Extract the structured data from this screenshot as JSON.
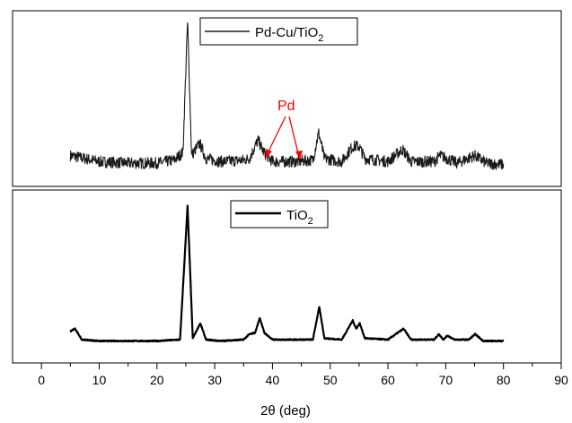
{
  "chart_data": [
    {
      "type": "line",
      "panel": "top",
      "title": "",
      "xlabel": "2θ (deg)",
      "ylabel": "",
      "xlim": [
        -5,
        90
      ],
      "y_ticks_shown": false,
      "x_ticks_shown": false,
      "grid": false,
      "legend_position": "top-center",
      "series": [
        {
          "name": "Pd-Cu/TiO",
          "name_subscript": "2",
          "color": "#555555",
          "noisy": true,
          "points": [
            [
              5,
              0.12
            ],
            [
              10,
              0.08
            ],
            [
              15,
              0.07
            ],
            [
              20,
              0.07
            ],
            [
              23,
              0.09
            ],
            [
              24.5,
              0.14
            ],
            [
              25.3,
              1.0
            ],
            [
              26,
              0.12
            ],
            [
              27.4,
              0.2
            ],
            [
              28.5,
              0.1
            ],
            [
              31,
              0.08
            ],
            [
              35,
              0.09
            ],
            [
              36,
              0.1
            ],
            [
              37.5,
              0.22
            ],
            [
              38.5,
              0.14
            ],
            [
              40,
              0.08
            ],
            [
              44,
              0.08
            ],
            [
              47,
              0.09
            ],
            [
              48,
              0.27
            ],
            [
              49,
              0.1
            ],
            [
              52,
              0.08
            ],
            [
              53.5,
              0.16
            ],
            [
              54,
              0.18
            ],
            [
              55,
              0.18
            ],
            [
              56,
              0.1
            ],
            [
              60,
              0.08
            ],
            [
              62.5,
              0.16
            ],
            [
              64,
              0.08
            ],
            [
              68,
              0.08
            ],
            [
              69,
              0.12
            ],
            [
              70.2,
              0.1
            ],
            [
              72,
              0.07
            ],
            [
              75,
              0.12
            ],
            [
              77,
              0.07
            ],
            [
              80,
              0.06
            ]
          ]
        }
      ],
      "annotations": [
        {
          "text": "Pd",
          "color": "#ff0000",
          "arrow_targets_x": [
            38.3,
            44.3
          ]
        }
      ]
    },
    {
      "type": "line",
      "panel": "bottom",
      "title": "",
      "xlabel": "2θ (deg)",
      "ylabel": "",
      "xlim": [
        -5,
        90
      ],
      "x_ticks": [
        0,
        10,
        20,
        30,
        40,
        50,
        60,
        70,
        80,
        90
      ],
      "y_ticks_shown": false,
      "grid": false,
      "legend_position": "top-center",
      "series": [
        {
          "name": "TiO",
          "name_subscript": "2",
          "color": "#000000",
          "noisy": false,
          "points": [
            [
              5,
              0.08
            ],
            [
              5.8,
              0.1
            ],
            [
              7,
              0.02
            ],
            [
              10,
              0.01
            ],
            [
              15,
              0.01
            ],
            [
              20,
              0.01
            ],
            [
              24,
              0.02
            ],
            [
              25.3,
              1.0
            ],
            [
              26.2,
              0.03
            ],
            [
              27.5,
              0.14
            ],
            [
              28.5,
              0.02
            ],
            [
              31,
              0.01
            ],
            [
              35,
              0.02
            ],
            [
              36,
              0.06
            ],
            [
              37,
              0.07
            ],
            [
              37.8,
              0.18
            ],
            [
              38.6,
              0.07
            ],
            [
              40,
              0.02
            ],
            [
              47,
              0.02
            ],
            [
              48.1,
              0.26
            ],
            [
              49,
              0.03
            ],
            [
              52,
              0.02
            ],
            [
              53.9,
              0.16
            ],
            [
              54.5,
              0.1
            ],
            [
              55.1,
              0.14
            ],
            [
              56,
              0.03
            ],
            [
              60,
              0.02
            ],
            [
              62.7,
              0.1
            ],
            [
              64,
              0.02
            ],
            [
              68,
              0.02
            ],
            [
              68.8,
              0.06
            ],
            [
              69.6,
              0.02
            ],
            [
              70.3,
              0.05
            ],
            [
              71.5,
              0.02
            ],
            [
              74,
              0.02
            ],
            [
              75.1,
              0.06
            ],
            [
              76.5,
              0.01
            ],
            [
              80,
              0.01
            ]
          ]
        }
      ]
    }
  ]
}
